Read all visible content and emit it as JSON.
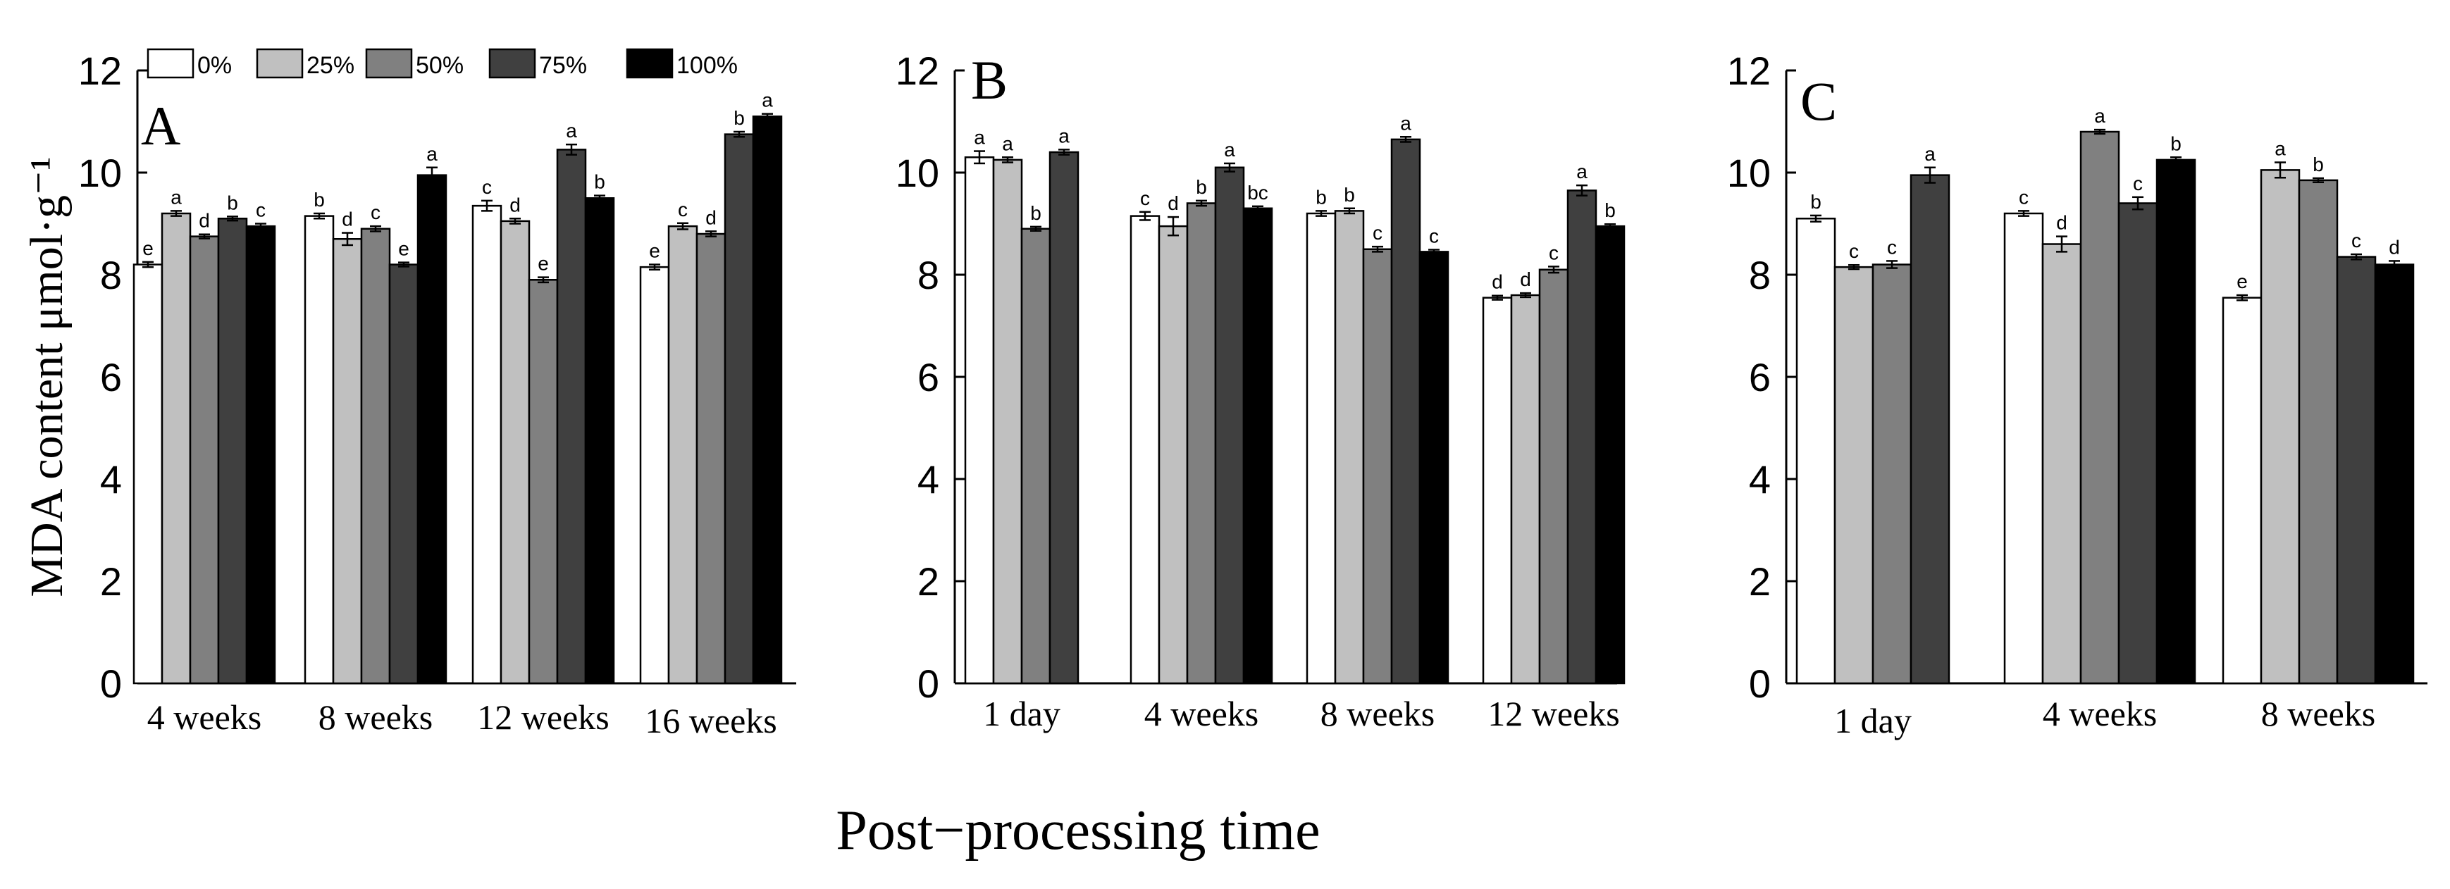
{
  "chart_data": [
    {
      "panel_label": "A",
      "type": "bar",
      "ylabel": "MDA content μmol·g⁻¹",
      "ylim": [
        0,
        12
      ],
      "yticks": [
        "0",
        "2",
        "4",
        "6",
        "8",
        "10",
        "12"
      ],
      "categories": [
        "4 weeks",
        "8 weeks",
        "12 weeks",
        "16 weeks"
      ],
      "legend": {
        "position": "top-left",
        "entries": [
          "0%",
          "25%",
          "50%",
          "75%",
          "100%"
        ]
      },
      "series": [
        {
          "name": "0%",
          "values": [
            8.2,
            9.15,
            9.35,
            8.15
          ],
          "errors": [
            0.05,
            0.05,
            0.1,
            0.05
          ],
          "letters": [
            "e",
            "b",
            "c",
            "e"
          ]
        },
        {
          "name": "25%",
          "values": [
            9.2,
            8.7,
            9.05,
            8.95
          ],
          "errors": [
            0.05,
            0.12,
            0.05,
            0.06
          ],
          "letters": [
            "a",
            "d",
            "d",
            "c"
          ]
        },
        {
          "name": "50%",
          "values": [
            8.75,
            8.9,
            7.9,
            8.8
          ],
          "errors": [
            0.04,
            0.05,
            0.05,
            0.05
          ],
          "letters": [
            "d",
            "c",
            "e",
            "d"
          ]
        },
        {
          "name": "75%",
          "values": [
            9.1,
            8.2,
            10.45,
            10.75
          ],
          "errors": [
            0.04,
            0.04,
            0.1,
            0.05
          ],
          "letters": [
            "b",
            "e",
            "a",
            "b"
          ]
        },
        {
          "name": "100%",
          "values": [
            8.95,
            9.95,
            9.5,
            11.1
          ],
          "errors": [
            0.05,
            0.15,
            0.05,
            0.05
          ],
          "letters": [
            "c",
            "a",
            "b",
            "a"
          ]
        }
      ]
    },
    {
      "panel_label": "B",
      "type": "bar",
      "ylim": [
        0,
        12
      ],
      "yticks": [
        "0",
        "2",
        "4",
        "6",
        "8",
        "10",
        "12"
      ],
      "categories": [
        "1 day",
        "4 weeks",
        "8 weeks",
        "12 weeks"
      ],
      "series": [
        {
          "name": "0%",
          "values": [
            10.3,
            9.15,
            9.2,
            7.55
          ],
          "errors": [
            0.12,
            0.08,
            0.05,
            0.04
          ],
          "letters": [
            "a",
            "c",
            "b",
            "d"
          ]
        },
        {
          "name": "25%",
          "values": [
            10.25,
            8.95,
            9.25,
            7.6
          ],
          "errors": [
            0.05,
            0.18,
            0.05,
            0.04
          ],
          "letters": [
            "a",
            "d",
            "b",
            "d"
          ]
        },
        {
          "name": "50%",
          "values": [
            8.9,
            9.4,
            8.5,
            8.1
          ],
          "errors": [
            0.04,
            0.05,
            0.05,
            0.06
          ],
          "letters": [
            "b",
            "b",
            "c",
            "c"
          ]
        },
        {
          "name": "75%",
          "values": [
            10.4,
            10.1,
            10.65,
            9.65
          ],
          "errors": [
            0.05,
            0.08,
            0.05,
            0.1
          ],
          "letters": [
            "a",
            "a",
            "a",
            "a"
          ]
        },
        {
          "name": "100%",
          "values": [
            null,
            9.3,
            8.45,
            8.95
          ],
          "errors": [
            null,
            0.04,
            0.04,
            0.04
          ],
          "letters": [
            null,
            "bc",
            "c",
            "b"
          ]
        }
      ]
    },
    {
      "panel_label": "C",
      "type": "bar",
      "ylim": [
        0,
        12
      ],
      "yticks": [
        "0",
        "2",
        "4",
        "6",
        "8",
        "10",
        "12"
      ],
      "categories": [
        "1 day",
        "4 weeks",
        "8 weeks"
      ],
      "series": [
        {
          "name": "0%",
          "values": [
            9.1,
            9.2,
            7.55
          ],
          "errors": [
            0.06,
            0.05,
            0.05
          ],
          "letters": [
            "b",
            "c",
            "e"
          ]
        },
        {
          "name": "25%",
          "values": [
            8.15,
            8.6,
            10.05
          ],
          "errors": [
            0.04,
            0.15,
            0.15
          ],
          "letters": [
            "c",
            "d",
            "a"
          ]
        },
        {
          "name": "50%",
          "values": [
            8.2,
            10.8,
            9.85
          ],
          "errors": [
            0.07,
            0.04,
            0.04
          ],
          "letters": [
            "c",
            "a",
            "b"
          ]
        },
        {
          "name": "75%",
          "values": [
            9.95,
            9.4,
            8.35
          ],
          "errors": [
            0.15,
            0.12,
            0.05
          ],
          "letters": [
            "a",
            "c",
            "c"
          ]
        },
        {
          "name": "100%",
          "values": [
            null,
            10.25,
            8.2
          ],
          "errors": [
            null,
            0.05,
            0.07
          ],
          "letters": [
            null,
            "b",
            "d"
          ]
        }
      ]
    }
  ],
  "shared": {
    "xlabel": "Post−processing time",
    "series_colors": [
      "#ffffff",
      "#c0c0c0",
      "#808080",
      "#404040",
      "#000000"
    ],
    "axis_color": "#000000"
  }
}
